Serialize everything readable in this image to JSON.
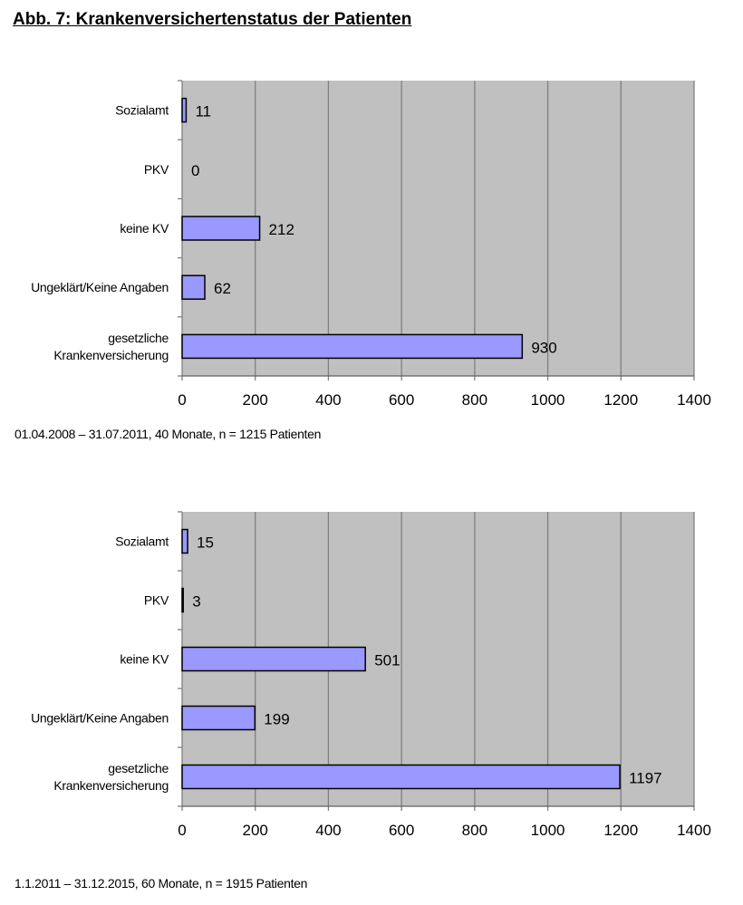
{
  "title": "Abb. 7: Krankenversichertenstatus der Patienten",
  "colors": {
    "plot_bg": "#c0c0c0",
    "bar": "#9999ff",
    "grid": "#808080"
  },
  "chart_data": [
    {
      "type": "bar",
      "orientation": "horizontal",
      "categories": [
        "Sozialamt",
        "PKV",
        "keine KV",
        "Ungeklärt/Keine Angaben",
        "gesetzliche Krankenversicherung"
      ],
      "category_lines": [
        [
          "Sozialamt"
        ],
        [
          "PKV"
        ],
        [
          "keine KV"
        ],
        [
          "Ungeklärt/Keine Angaben"
        ],
        [
          "gesetzliche",
          "Krankenversicherung"
        ]
      ],
      "values": [
        11,
        0,
        212,
        62,
        930
      ],
      "xlim": [
        0,
        1400
      ],
      "xticks": [
        0,
        200,
        400,
        600,
        800,
        1000,
        1200,
        1400
      ],
      "grid": true,
      "caption": "01.04.2008 – 31.07.2011, 40 Monate, n = 1215 Patienten"
    },
    {
      "type": "bar",
      "orientation": "horizontal",
      "categories": [
        "Sozialamt",
        "PKV",
        "keine KV",
        "Ungeklärt/Keine Angaben",
        "gesetzliche Krankenversicherung"
      ],
      "category_lines": [
        [
          "Sozialamt"
        ],
        [
          "PKV"
        ],
        [
          "keine KV"
        ],
        [
          "Ungeklärt/Keine Angaben"
        ],
        [
          "gesetzliche",
          "Krankenversicherung"
        ]
      ],
      "values": [
        15,
        3,
        501,
        199,
        1197
      ],
      "xlim": [
        0,
        1400
      ],
      "xticks": [
        0,
        200,
        400,
        600,
        800,
        1000,
        1200,
        1400
      ],
      "grid": true,
      "caption": "1.1.2011 – 31.12.2015, 60 Monate, n = 1915 Patienten"
    }
  ]
}
